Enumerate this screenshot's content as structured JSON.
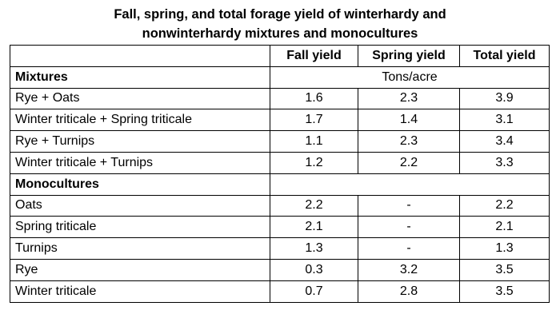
{
  "title": {
    "line1": "Fall, spring, and total forage yield of winterhardy and",
    "line2": "nonwinterhardy mixtures and monocultures"
  },
  "table": {
    "columns": [
      "",
      "Fall yield",
      "Spring yield",
      "Total yield"
    ],
    "unit": "Tons/acre",
    "sections": [
      {
        "label": "Mixtures",
        "rows": [
          {
            "name": "Rye + Oats",
            "fall": "1.6",
            "spring": "2.3",
            "total": "3.9"
          },
          {
            "name": "Winter triticale + Spring triticale",
            "fall": "1.7",
            "spring": "1.4",
            "total": "3.1"
          },
          {
            "name": "Rye + Turnips",
            "fall": "1.1",
            "spring": "2.3",
            "total": "3.4"
          },
          {
            "name": "Winter triticale + Turnips",
            "fall": "1.2",
            "spring": "2.2",
            "total": "3.3"
          }
        ]
      },
      {
        "label": "Monocultures",
        "rows": [
          {
            "name": "Oats",
            "fall": "2.2",
            "spring": "-",
            "total": "2.2"
          },
          {
            "name": "Spring triticale",
            "fall": "2.1",
            "spring": "-",
            "total": "2.1"
          },
          {
            "name": "Turnips",
            "fall": "1.3",
            "spring": "-",
            "total": "1.3"
          },
          {
            "name": "Rye",
            "fall": "0.3",
            "spring": "3.2",
            "total": "3.5"
          },
          {
            "name": "Winter triticale",
            "fall": "0.7",
            "spring": "2.8",
            "total": "3.5"
          }
        ]
      }
    ]
  }
}
